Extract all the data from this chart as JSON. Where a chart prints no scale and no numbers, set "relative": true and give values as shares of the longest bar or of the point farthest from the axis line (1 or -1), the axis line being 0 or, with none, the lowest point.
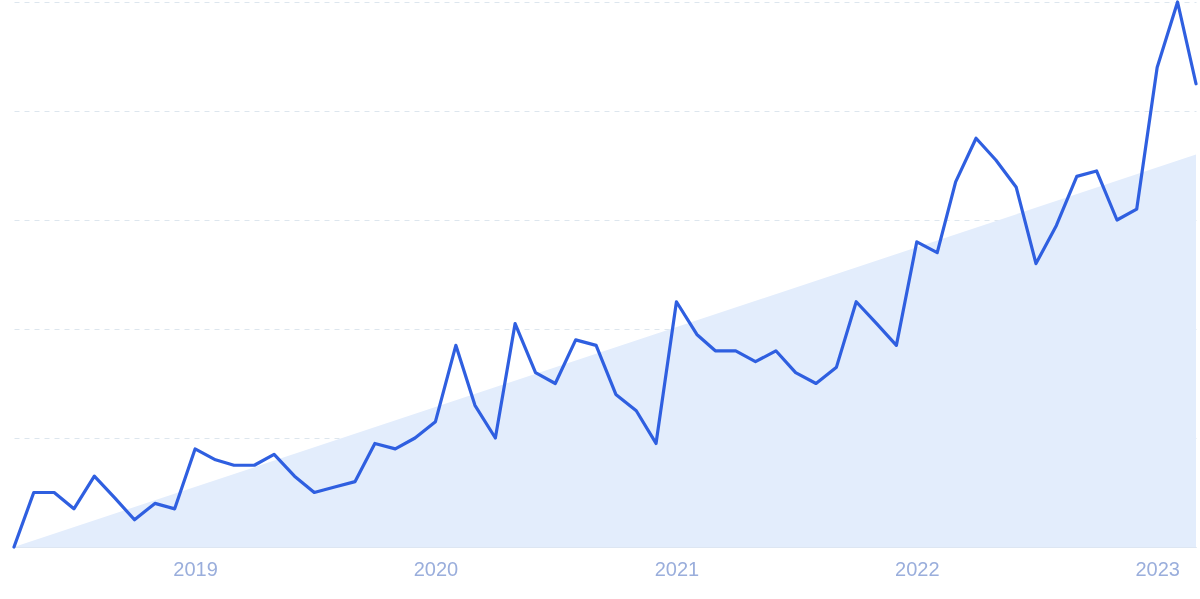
{
  "chart_data": {
    "type": "line",
    "relative": true,
    "grid": "y",
    "xlim": [
      "2018-04",
      "2023-03"
    ],
    "xticks": [
      {
        "value": "2019-01",
        "label": "2019"
      },
      {
        "value": "2020-01",
        "label": "2020"
      },
      {
        "value": "2021-01",
        "label": "2021"
      },
      {
        "value": "2022-01",
        "label": "2022"
      },
      {
        "value": "2023-01",
        "label": "2023"
      }
    ],
    "series": [
      {
        "type": "area",
        "color": "#e3edfc",
        "x": [
          "2018-04",
          "2023-03"
        ],
        "values": [
          0,
          0.72
        ]
      },
      {
        "color": "#2f5fe0",
        "x": [
          "2018-04",
          "2018-05",
          "2018-06",
          "2018-07",
          "2018-08",
          "2018-09",
          "2018-10",
          "2018-11",
          "2018-12",
          "2019-01",
          "2019-02",
          "2019-03",
          "2019-04",
          "2019-05",
          "2019-06",
          "2019-07",
          "2019-08",
          "2019-09",
          "2019-10",
          "2019-11",
          "2019-12",
          "2020-01",
          "2020-02",
          "2020-03",
          "2020-04",
          "2020-05",
          "2020-06",
          "2020-07",
          "2020-08",
          "2020-09",
          "2020-10",
          "2020-11",
          "2020-12",
          "2021-01",
          "2021-02",
          "2021-03",
          "2021-04",
          "2021-05",
          "2021-06",
          "2021-07",
          "2021-08",
          "2021-09",
          "2021-10",
          "2021-11",
          "2021-12",
          "2022-01",
          "2022-02",
          "2022-03",
          "2022-04",
          "2022-05",
          "2022-06",
          "2022-07",
          "2022-08",
          "2022-09",
          "2022-10",
          "2022-11",
          "2022-12",
          "2023-01",
          "2023-02",
          "2023-03"
        ],
        "values": [
          0,
          0.1,
          0.1,
          0.07,
          0.13,
          0.09,
          0.05,
          0.08,
          0.07,
          0.18,
          0.16,
          0.15,
          0.15,
          0.17,
          0.13,
          0.1,
          0.11,
          0.12,
          0.19,
          0.18,
          0.2,
          0.23,
          0.37,
          0.26,
          0.2,
          0.41,
          0.32,
          0.3,
          0.38,
          0.37,
          0.28,
          0.25,
          0.19,
          0.45,
          0.39,
          0.36,
          0.36,
          0.34,
          0.36,
          0.32,
          0.3,
          0.33,
          0.45,
          0.41,
          0.37,
          0.56,
          0.54,
          0.67,
          0.75,
          0.71,
          0.66,
          0.52,
          0.59,
          0.68,
          0.69,
          0.6,
          0.62,
          0.88,
          1.0,
          0.85
        ]
      }
    ]
  }
}
